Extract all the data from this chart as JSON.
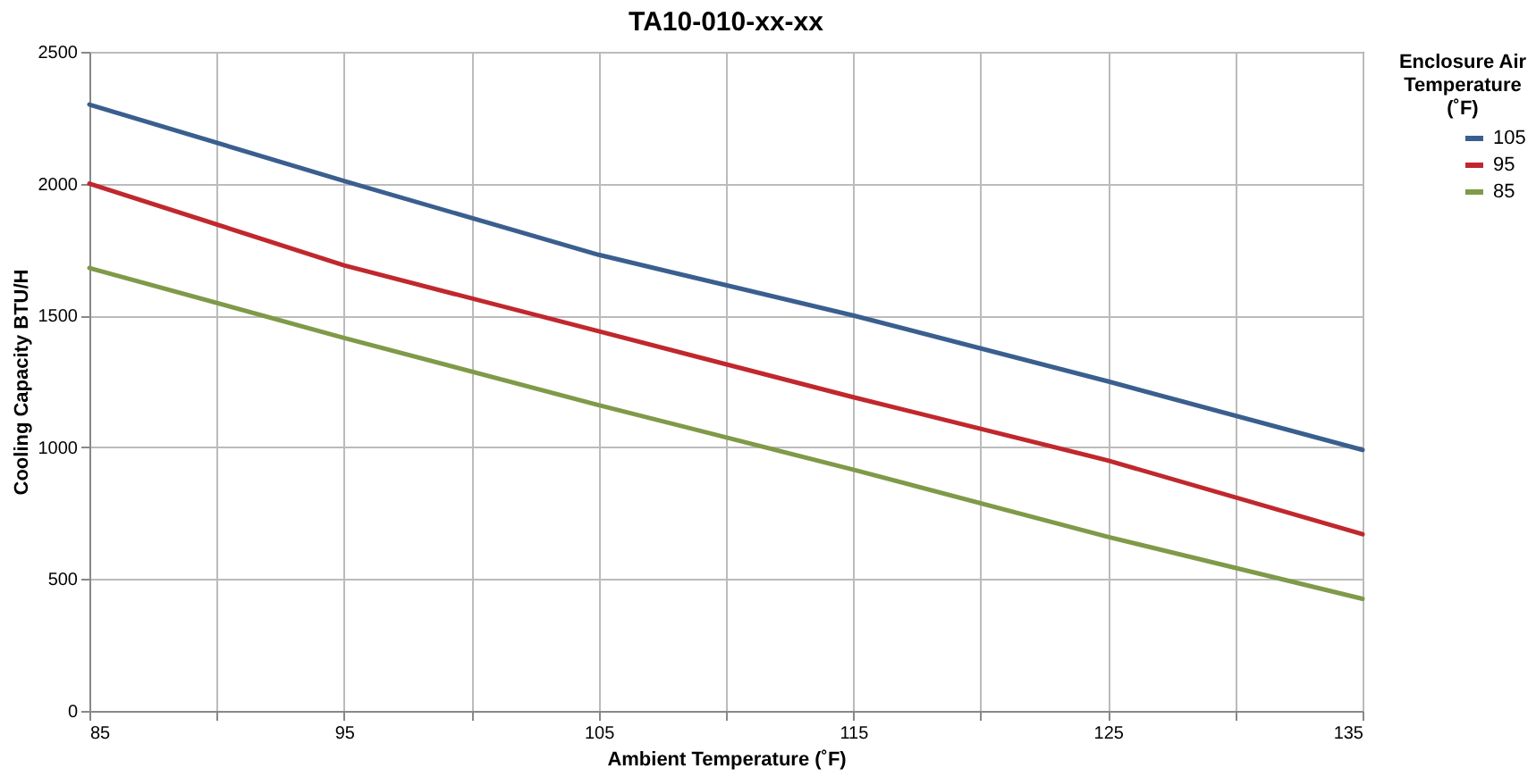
{
  "chart_data": {
    "type": "line",
    "title": "TA10-010-xx-xx",
    "xlabel": "Ambient Temperature (˚F)",
    "ylabel": "Cooling Capacity BTU/H",
    "legend_title": "Enclosure Air Temperature (˚F)",
    "x": [
      85,
      95,
      105,
      115,
      125,
      135
    ],
    "series": [
      {
        "name": "105",
        "color": "#3a5f8f",
        "values": [
          2300,
          2010,
          1730,
          1500,
          1250,
          990
        ]
      },
      {
        "name": "95",
        "color": "#c0282d",
        "values": [
          2000,
          1690,
          1440,
          1190,
          950,
          670
        ]
      },
      {
        "name": "85",
        "color": "#7f9a48",
        "values": [
          1680,
          1415,
          1160,
          915,
          660,
          425
        ]
      }
    ],
    "xlim": [
      85,
      135
    ],
    "xticks": [
      85,
      {
        "value": 90,
        "label": null
      },
      95,
      {
        "value": 100,
        "label": null
      },
      105,
      {
        "value": 110,
        "label": null
      },
      115,
      {
        "value": 120,
        "label": null
      },
      125,
      {
        "value": 130,
        "label": null
      },
      135
    ],
    "ylim": [
      0,
      2500
    ],
    "yticks": [
      0,
      500,
      1000,
      1500,
      2000,
      2500
    ],
    "grid": true,
    "legend": "right",
    "marker": "none",
    "line_style": "solid"
  }
}
